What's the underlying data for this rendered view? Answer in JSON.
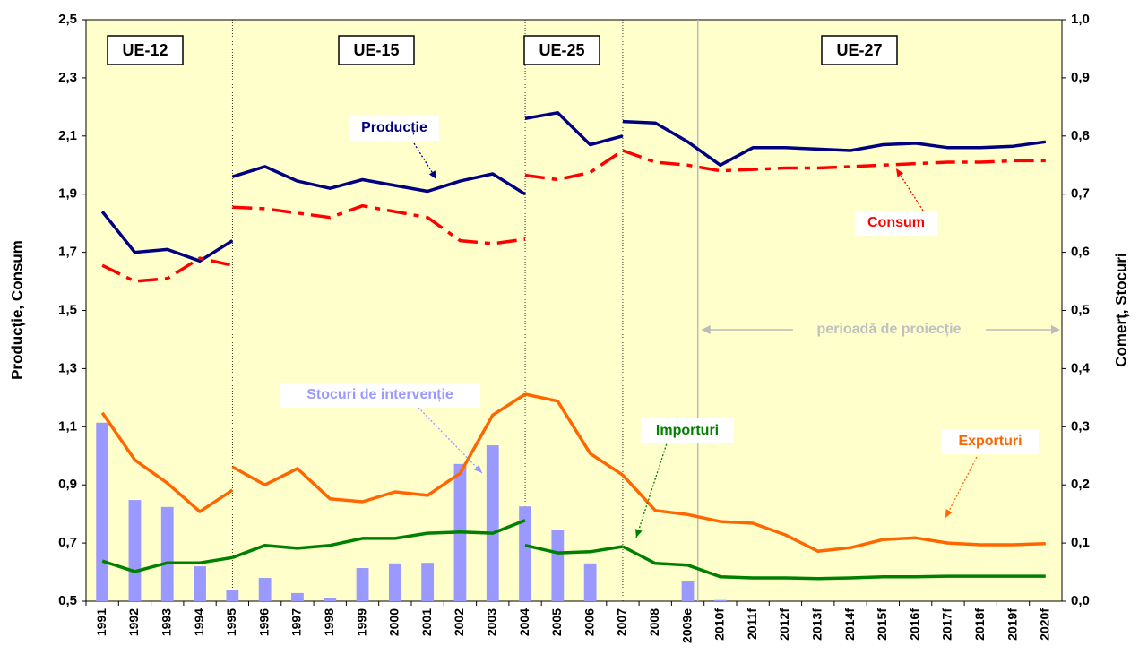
{
  "chart_data": {
    "type": "line",
    "y_label": "Producție, Consum",
    "y2_label": "Comerț, Stocuri",
    "categories": [
      "1991",
      "1992",
      "1993",
      "1994",
      "1995",
      "1996",
      "1997",
      "1998",
      "1999",
      "2000",
      "2001",
      "2002",
      "2003",
      "2004",
      "2005",
      "2006",
      "2007",
      "2008",
      "2009e",
      "2010f",
      "2011f",
      "2012f",
      "2013f",
      "2014f",
      "2015f",
      "2016f",
      "2017f",
      "2018f",
      "2019f",
      "2020f"
    ],
    "ylim": [
      0.5,
      2.5
    ],
    "yticks": [
      {
        "value": 0.5,
        "label": "0,5"
      },
      {
        "value": 0.7,
        "label": "0,7"
      },
      {
        "value": 0.9,
        "label": "0,9"
      },
      {
        "value": 1.1,
        "label": "1,1"
      },
      {
        "value": 1.3,
        "label": "1,3"
      },
      {
        "value": 1.5,
        "label": "1,5"
      },
      {
        "value": 1.7,
        "label": "1,7"
      },
      {
        "value": 1.9,
        "label": "1,9"
      },
      {
        "value": 2.1,
        "label": "2,1"
      },
      {
        "value": 2.3,
        "label": "2,3"
      },
      {
        "value": 2.5,
        "label": "2,5"
      }
    ],
    "y2lim": [
      0,
      1
    ],
    "y2ticks": [
      {
        "value": 0,
        "label": "0,0"
      },
      {
        "value": 0.1,
        "label": "0,1"
      },
      {
        "value": 0.2,
        "label": "0,2"
      },
      {
        "value": 0.3,
        "label": "0,3"
      },
      {
        "value": 0.4,
        "label": "0,4"
      },
      {
        "value": 0.5,
        "label": "0,5"
      },
      {
        "value": 0.6,
        "label": "0,6"
      },
      {
        "value": 0.7,
        "label": "0,7"
      },
      {
        "value": 0.8,
        "label": "0,8"
      },
      {
        "value": 0.9,
        "label": "0,9"
      },
      {
        "value": 1,
        "label": "1,0"
      }
    ],
    "background": "#ffffcc",
    "eras": [
      "UE-12",
      "UE-15",
      "UE-25",
      "UE-27"
    ],
    "projection_label": "perioadă de proiecție",
    "series": [
      {
        "name": "Stocuri de intervenție",
        "type": "bar",
        "axis": "y2",
        "color": "#9999ff",
        "values": [
          0.307,
          0.174,
          0.162,
          0.06,
          0.02,
          0.04,
          0.014,
          0.005,
          0.057,
          0.065,
          0.066,
          0.236,
          0.268,
          0.163,
          0.122,
          0.065,
          0,
          0,
          0.034,
          0.002,
          null,
          null,
          null,
          null,
          null,
          null,
          null,
          null,
          null,
          null
        ]
      },
      {
        "name": "Producție",
        "type": "line",
        "axis": "y",
        "color": "#000080",
        "line_style": "solid",
        "segments": [
          [
            1.84,
            1.7,
            1.71,
            1.67,
            1.74,
            null,
            null,
            null,
            null,
            null,
            null,
            null,
            null,
            null,
            null,
            null,
            null,
            null,
            null,
            null,
            null,
            null,
            null,
            null,
            null,
            null,
            null,
            null,
            null,
            null
          ],
          [
            null,
            null,
            null,
            null,
            1.96,
            1.995,
            1.945,
            1.92,
            1.95,
            1.93,
            1.91,
            1.945,
            1.97,
            1.9,
            null,
            null,
            null,
            null,
            null,
            null,
            null,
            null,
            null,
            null,
            null,
            null,
            null,
            null,
            null,
            null
          ],
          [
            null,
            null,
            null,
            null,
            null,
            null,
            null,
            null,
            null,
            null,
            null,
            null,
            null,
            2.16,
            2.18,
            2.07,
            2.1,
            null,
            null,
            null,
            null,
            null,
            null,
            null,
            null,
            null,
            null,
            null,
            null,
            null
          ],
          [
            null,
            null,
            null,
            null,
            null,
            null,
            null,
            null,
            null,
            null,
            null,
            null,
            null,
            null,
            null,
            null,
            2.15,
            2.145,
            2.08,
            2.0,
            2.06,
            2.06,
            2.055,
            2.05,
            2.07,
            2.075,
            2.06,
            2.06,
            2.065,
            2.08
          ]
        ]
      },
      {
        "name": "Consum",
        "type": "line",
        "axis": "y",
        "color": "#ff0000",
        "line_style": "dashed",
        "segments": [
          [
            1.655,
            1.6,
            1.61,
            1.68,
            1.655,
            null,
            null,
            null,
            null,
            null,
            null,
            null,
            null,
            null,
            null,
            null,
            null,
            null,
            null,
            null,
            null,
            null,
            null,
            null,
            null,
            null,
            null,
            null,
            null,
            null
          ],
          [
            null,
            null,
            null,
            null,
            1.855,
            1.85,
            1.835,
            1.82,
            1.86,
            1.84,
            1.82,
            1.74,
            1.73,
            1.745,
            null,
            null,
            null,
            null,
            null,
            null,
            null,
            null,
            null,
            null,
            null,
            null,
            null,
            null,
            null,
            null
          ],
          [
            null,
            null,
            null,
            null,
            null,
            null,
            null,
            null,
            null,
            null,
            null,
            null,
            null,
            1.965,
            1.95,
            1.975,
            2.05,
            null,
            null,
            null,
            null,
            null,
            null,
            null,
            null,
            null,
            null,
            null,
            null,
            null
          ],
          [
            null,
            null,
            null,
            null,
            null,
            null,
            null,
            null,
            null,
            null,
            null,
            null,
            null,
            null,
            null,
            null,
            2.05,
            2.01,
            2.0,
            1.98,
            1.985,
            1.99,
            1.99,
            1.995,
            2.0,
            2.005,
            2.01,
            2.01,
            2.015,
            2.015
          ]
        ]
      },
      {
        "name": "Exporturi",
        "type": "line",
        "axis": "y2",
        "color": "#ff6600",
        "line_style": "solid",
        "segments": [
          [
            0.324,
            0.243,
            0.203,
            0.154,
            0.191,
            null,
            null,
            null,
            null,
            null,
            null,
            null,
            null,
            null,
            null,
            null,
            null,
            null,
            null,
            null,
            null,
            null,
            null,
            null,
            null,
            null,
            null,
            null,
            null,
            null
          ],
          [
            null,
            null,
            null,
            null,
            0.231,
            0.2,
            0.228,
            0.176,
            0.171,
            0.188,
            0.182,
            0.22,
            0.32,
            0.356,
            null,
            null,
            null,
            null,
            null,
            null,
            null,
            null,
            null,
            null,
            null,
            null,
            null,
            null,
            null,
            null
          ],
          [
            null,
            null,
            null,
            null,
            null,
            null,
            null,
            null,
            null,
            null,
            null,
            null,
            null,
            0.356,
            0.344,
            0.254,
            0.217,
            null,
            null,
            null,
            null,
            null,
            null,
            null,
            null,
            null,
            null,
            null,
            null,
            null
          ],
          [
            null,
            null,
            null,
            null,
            null,
            null,
            null,
            null,
            null,
            null,
            null,
            null,
            null,
            null,
            null,
            null,
            0.217,
            0.156,
            0.149,
            0.137,
            0.134,
            0.114,
            0.086,
            0.092,
            0.106,
            0.109,
            0.1,
            0.097,
            0.097,
            0.099
          ]
        ]
      },
      {
        "name": "Importuri",
        "type": "line",
        "axis": "y2",
        "color": "#008000",
        "line_style": "solid",
        "segments": [
          [
            0.069,
            0.051,
            0.066,
            0.066,
            0.075,
            null,
            null,
            null,
            null,
            null,
            null,
            null,
            null,
            null,
            null,
            null,
            null,
            null,
            null,
            null,
            null,
            null,
            null,
            null,
            null,
            null,
            null,
            null,
            null,
            null
          ],
          [
            null,
            null,
            null,
            null,
            0.075,
            0.096,
            0.091,
            0.096,
            0.108,
            0.108,
            0.117,
            0.119,
            0.117,
            0.139,
            null,
            null,
            null,
            null,
            null,
            null,
            null,
            null,
            null,
            null,
            null,
            null,
            null,
            null,
            null,
            null
          ],
          [
            null,
            null,
            null,
            null,
            null,
            null,
            null,
            null,
            null,
            null,
            null,
            null,
            null,
            0.096,
            0.083,
            0.085,
            0.094,
            null,
            null,
            null,
            null,
            null,
            null,
            null,
            null,
            null,
            null,
            null,
            null,
            null
          ],
          [
            null,
            null,
            null,
            null,
            null,
            null,
            null,
            null,
            null,
            null,
            null,
            null,
            null,
            null,
            null,
            null,
            0.094,
            0.065,
            0.062,
            0.042,
            0.04,
            0.04,
            0.039,
            0.04,
            0.042,
            0.042,
            0.043,
            0.043,
            0.043,
            0.043
          ]
        ]
      }
    ]
  }
}
